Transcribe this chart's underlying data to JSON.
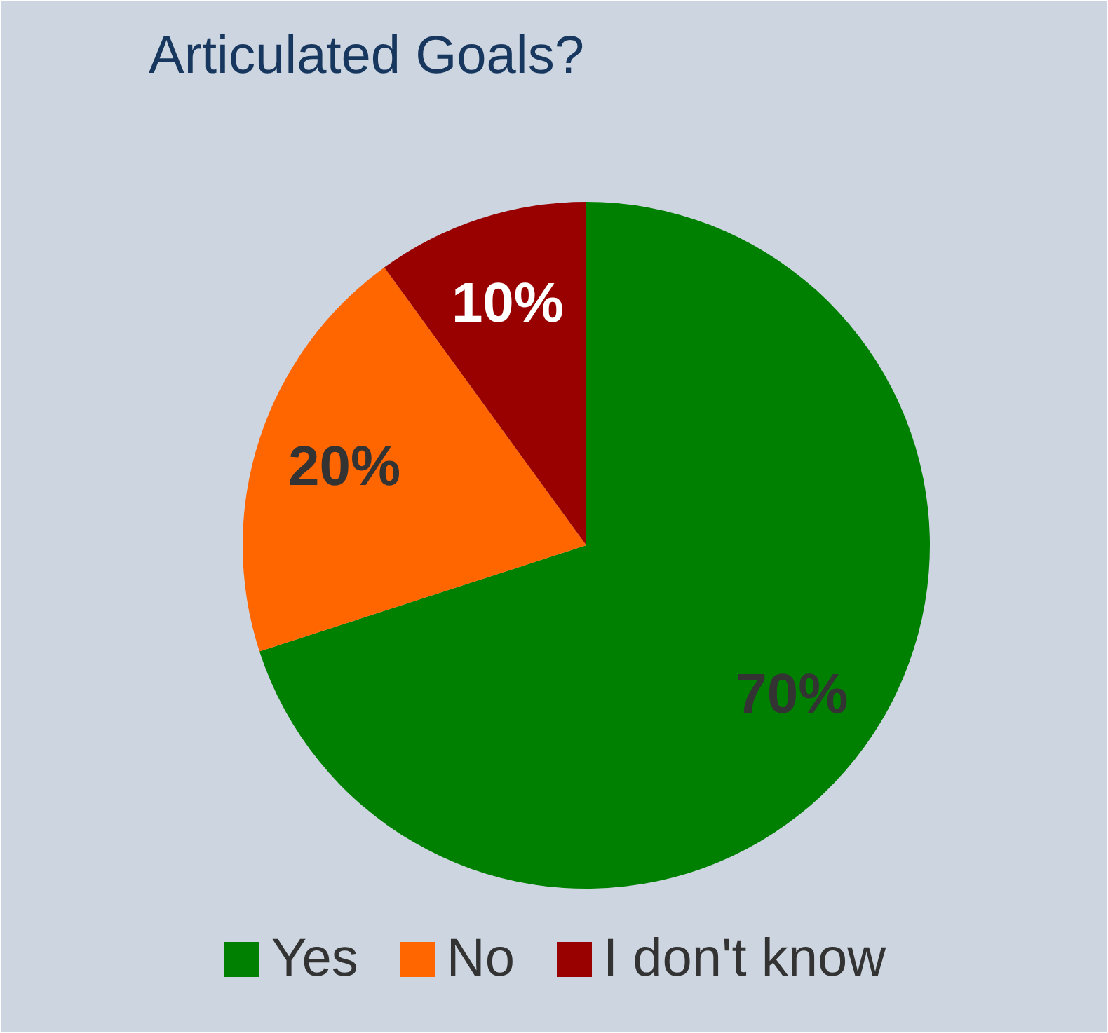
{
  "chart_data": {
    "type": "pie",
    "title": "Articulated Goals?",
    "categories": [
      "Yes",
      "No",
      "I don't know"
    ],
    "values": [
      70,
      20,
      10
    ],
    "colors": [
      "#008000",
      "#ff6600",
      "#990000"
    ],
    "value_labels": [
      "70%",
      "20%",
      "10%"
    ],
    "legend": "bottom"
  }
}
